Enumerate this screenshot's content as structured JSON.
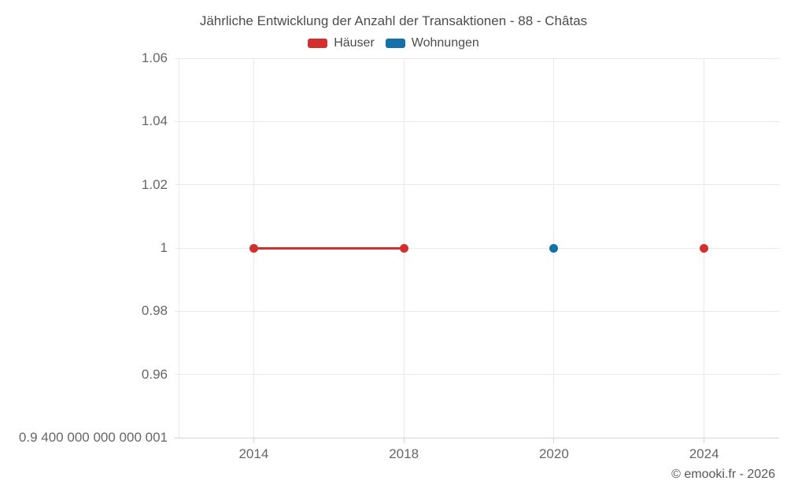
{
  "chart_data": {
    "type": "line",
    "title": "Jährliche Entwicklung der Anzahl der Transaktionen - 88 - Châtas",
    "categories": [
      "2014",
      "2018",
      "2020",
      "2024"
    ],
    "series": [
      {
        "name": "Häuser",
        "color": "#d32f2f",
        "values": [
          1,
          1,
          null,
          1
        ]
      },
      {
        "name": "Wohnungen",
        "color": "#1470a8",
        "values": [
          null,
          null,
          1,
          null
        ]
      }
    ],
    "y_ticks": [
      {
        "value": 1.06,
        "label": "1.06"
      },
      {
        "value": 1.04,
        "label": "1.04"
      },
      {
        "value": 1.02,
        "label": "1.02"
      },
      {
        "value": 1,
        "label": "1"
      },
      {
        "value": 0.98,
        "label": "0.98"
      },
      {
        "value": 0.96,
        "label": "0.96"
      },
      {
        "value": 0.9400000000000001,
        "label": "0.9 400 000 000 000 001"
      }
    ],
    "ylim": [
      0.9400000000000001,
      1.06
    ],
    "grid": true,
    "legend_position": "top",
    "line_at_y": 1
  },
  "footer": {
    "text": "© emooki.fr - 2026"
  },
  "colors": {
    "grid": "#e9e9e9",
    "axis": "#d4d4d4",
    "text": "#666666",
    "title_text": "#4c4c4c"
  }
}
